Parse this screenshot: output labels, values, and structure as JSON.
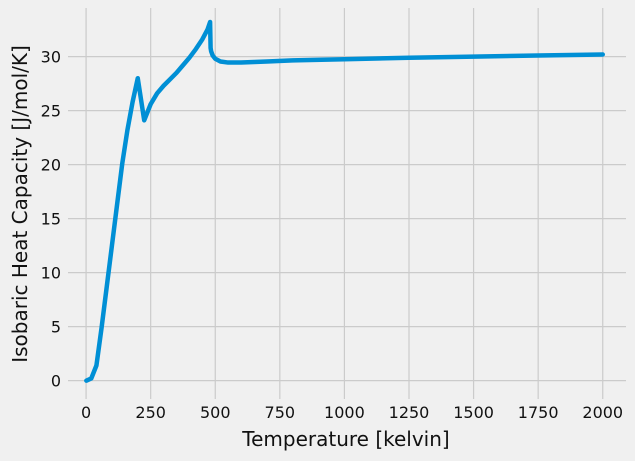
{
  "chart_data": {
    "type": "line",
    "title": "",
    "xlabel": "Temperature [kelvin]",
    "ylabel": "Isobaric Heat Capacity [J/mol/K]",
    "xlim": [
      -70,
      2090
    ],
    "ylim": [
      -1.7,
      34.5
    ],
    "xticks": [
      0,
      250,
      500,
      750,
      1000,
      1250,
      1500,
      1750,
      2000
    ],
    "yticks": [
      0,
      5,
      10,
      15,
      20,
      25,
      30
    ],
    "grid": true,
    "legend": "none",
    "colors": {
      "background": "#f0f0f0",
      "grid": "#cbcbcb",
      "line": "#008fd5",
      "text": "#111111"
    },
    "series": [
      {
        "x": [
          1,
          20,
          40,
          60,
          80,
          100,
          120,
          140,
          160,
          180,
          200,
          225,
          250,
          275,
          300,
          325,
          350,
          375,
          400,
          425,
          450,
          470,
          480,
          482,
          484,
          490,
          500,
          520,
          550,
          600,
          650,
          700,
          800,
          1000,
          1250,
          1500,
          1750,
          2000
        ],
        "y": [
          0,
          0.2,
          1.4,
          4.9,
          8.7,
          12.5,
          16.3,
          20.1,
          23.2,
          25.8,
          28.0,
          24.1,
          25.6,
          26.6,
          27.3,
          27.9,
          28.5,
          29.2,
          29.9,
          30.7,
          31.6,
          32.5,
          33.2,
          30.8,
          30.5,
          30.1,
          29.8,
          29.55,
          29.45,
          29.45,
          29.5,
          29.55,
          29.65,
          29.75,
          29.9,
          30.0,
          30.1,
          30.2
        ]
      }
    ]
  }
}
